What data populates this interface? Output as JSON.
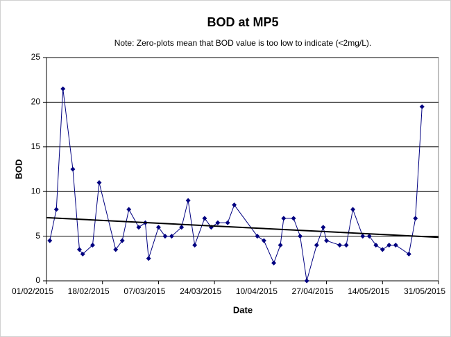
{
  "chart_data": {
    "type": "line",
    "title": "BOD at MP5",
    "subtitle": "Note: Zero-plots mean that BOD value is too low to indicate (<2mg/L).",
    "x_label": "Date",
    "y_label": "BOD",
    "x": [
      "2015-02-02",
      "2015-02-04",
      "2015-02-06",
      "2015-02-09",
      "2015-02-11",
      "2015-02-12",
      "2015-02-15",
      "2015-02-17",
      "2015-02-22",
      "2015-02-24",
      "2015-02-26",
      "2015-03-01",
      "2015-03-03",
      "2015-03-04",
      "2015-03-07",
      "2015-03-09",
      "2015-03-11",
      "2015-03-14",
      "2015-03-16",
      "2015-03-18",
      "2015-03-21",
      "2015-03-23",
      "2015-03-25",
      "2015-03-28",
      "2015-03-30",
      "2015-04-06",
      "2015-04-08",
      "2015-04-11",
      "2015-04-13",
      "2015-04-14",
      "2015-04-17",
      "2015-04-19",
      "2015-04-21",
      "2015-04-24",
      "2015-04-26",
      "2015-04-27",
      "2015-05-01",
      "2015-05-03",
      "2015-05-05",
      "2015-05-08",
      "2015-05-10",
      "2015-05-12",
      "2015-05-14",
      "2015-05-16",
      "2015-05-18",
      "2015-05-22",
      "2015-05-24",
      "2015-05-26"
    ],
    "series": [
      {
        "name": "BOD",
        "color": "#000080",
        "values": [
          4.5,
          8,
          21.5,
          12.5,
          3.5,
          3,
          4,
          11,
          3.5,
          4.5,
          8,
          6,
          6.5,
          2.5,
          6,
          5,
          5,
          6,
          9,
          4,
          7,
          6,
          6.5,
          6.5,
          8.5,
          5,
          4.5,
          2,
          4,
          7,
          7,
          5,
          0,
          4,
          6,
          4.5,
          4,
          4,
          8,
          5,
          5,
          4,
          3.5,
          4,
          4,
          3,
          7,
          19.5
        ]
      }
    ],
    "trendline": {
      "type": "linear",
      "color": "#000000"
    },
    "xlim": [
      "2015-02-01",
      "2015-05-31"
    ],
    "xticks": [
      {
        "value": "2015-02-01",
        "label": "01/02/2015"
      },
      {
        "value": "2015-02-18",
        "label": "18/02/2015"
      },
      {
        "value": "2015-03-07",
        "label": "07/03/2015"
      },
      {
        "value": "2015-03-24",
        "label": "24/03/2015"
      },
      {
        "value": "2015-04-10",
        "label": "10/04/2015"
      },
      {
        "value": "2015-04-27",
        "label": "27/04/2015"
      },
      {
        "value": "2015-05-14",
        "label": "14/05/2015"
      },
      {
        "value": "2015-05-31",
        "label": "31/05/2015"
      }
    ],
    "ylim": [
      0,
      25
    ],
    "yticks": [
      0,
      5,
      10,
      15,
      20,
      25
    ],
    "grid": true
  }
}
